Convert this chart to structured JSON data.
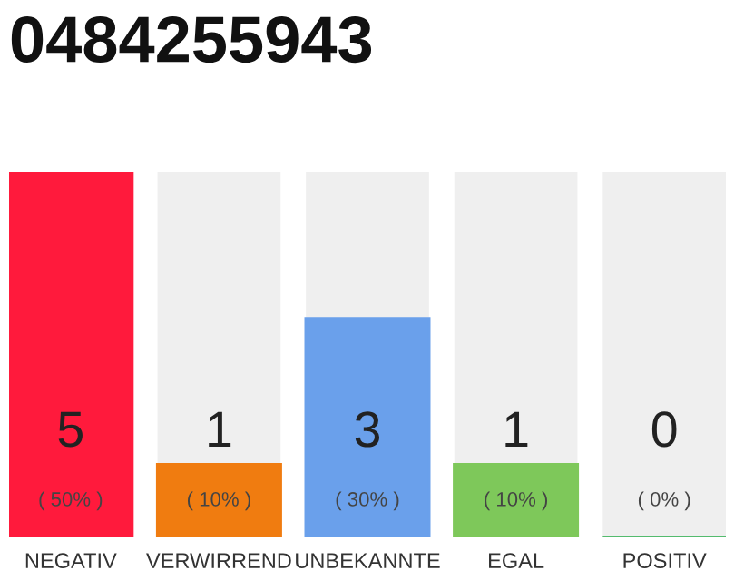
{
  "chart_data": {
    "type": "bar",
    "title": "0484255943",
    "categories": [
      "NEGATIV",
      "VERWIRREND",
      "UNBEKANNTE",
      "EGAL",
      "POSITIV"
    ],
    "values": [
      5,
      1,
      3,
      1,
      0
    ],
    "colors": [
      "#ff1a3c",
      "#f07c10",
      "#6aa0eb",
      "#7ec85a",
      "#22aa44"
    ],
    "data_labels": true,
    "annotations": [
      "( 50% )",
      "( 10% )",
      "( 30% )",
      "( 10% )",
      "( 0% )"
    ],
    "grid": false,
    "legend": false
  }
}
